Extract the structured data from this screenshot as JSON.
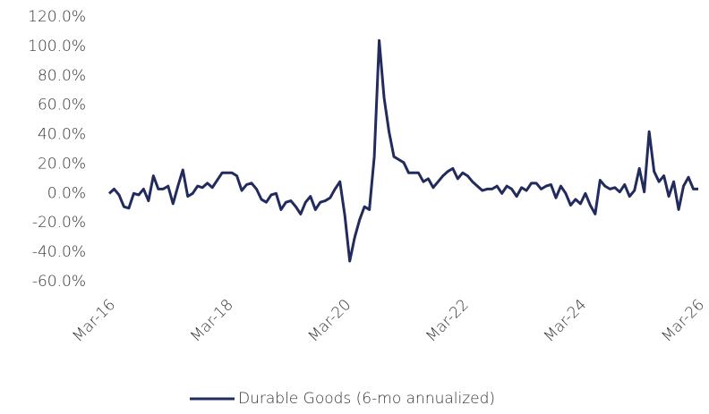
{
  "chart_data": {
    "type": "line",
    "categories": [
      "Mar-16",
      null,
      null,
      null,
      null,
      null,
      null,
      null,
      null,
      null,
      null,
      null,
      null,
      null,
      null,
      null,
      null,
      null,
      null,
      null,
      null,
      null,
      null,
      null,
      "Mar-18",
      null,
      null,
      null,
      null,
      null,
      null,
      null,
      null,
      null,
      null,
      null,
      null,
      null,
      null,
      null,
      null,
      null,
      null,
      null,
      null,
      null,
      null,
      null,
      "Mar-20",
      null,
      null,
      null,
      null,
      null,
      null,
      null,
      null,
      null,
      null,
      null,
      null,
      null,
      null,
      null,
      null,
      null,
      null,
      null,
      null,
      null,
      null,
      null,
      "Mar-22",
      null,
      null,
      null,
      null,
      null,
      null,
      null,
      null,
      null,
      null,
      null,
      null,
      null,
      null,
      null,
      null,
      null,
      null,
      null,
      null,
      null,
      null,
      null,
      "Mar-24",
      null,
      null,
      null,
      null,
      null,
      null,
      null,
      null,
      null,
      null,
      null,
      null,
      null,
      null,
      null,
      null,
      null,
      null,
      null,
      null,
      null,
      null,
      null,
      "Mar-26"
    ],
    "series": [
      {
        "name": "Durable Goods (6-mo annualized)",
        "color": "#222b5e",
        "values": [
          0,
          3,
          -1,
          -9,
          -10,
          0,
          -1,
          3,
          -5,
          12,
          3,
          3,
          5,
          -7,
          5,
          16,
          -2,
          0,
          5,
          4,
          7,
          4,
          9,
          14,
          14,
          14,
          12,
          2,
          6,
          7,
          3,
          -4,
          -6,
          -1,
          0,
          -11,
          -6,
          -5,
          -9,
          -14,
          -6,
          -2,
          -11,
          -6,
          -5,
          -3,
          3,
          8,
          -15,
          -46,
          -30,
          -18,
          -9,
          -11,
          25,
          104,
          65,
          42,
          25,
          23,
          21,
          14,
          14,
          14,
          8,
          10,
          4,
          8,
          12,
          15,
          17,
          10,
          14,
          12,
          8,
          5,
          2,
          3,
          3,
          5,
          0,
          5,
          3,
          -2,
          4,
          2,
          7,
          7,
          3,
          5,
          6,
          -3,
          5,
          0,
          -8,
          -4,
          -7,
          0,
          -8,
          -14,
          9,
          5,
          3,
          4,
          1,
          6,
          -2,
          2,
          17,
          1,
          42,
          15,
          8,
          12,
          -2,
          8,
          -11,
          5,
          11,
          3,
          3
        ]
      }
    ],
    "ylim": [
      -60,
      120
    ],
    "yticks": [
      {
        "value": -60,
        "label": "-60.0%"
      },
      {
        "value": -40,
        "label": "-40.0%"
      },
      {
        "value": -20,
        "label": "-20.0%"
      },
      {
        "value": 0,
        "label": "0.0%"
      },
      {
        "value": 20,
        "label": "20.0%"
      },
      {
        "value": 40,
        "label": "40.0%"
      },
      {
        "value": 60,
        "label": "60.0%"
      },
      {
        "value": 80,
        "label": "80.0%"
      },
      {
        "value": 100,
        "label": "100.0%"
      },
      {
        "value": 120,
        "label": "120.0%"
      }
    ],
    "grid": false,
    "legend": "bottom"
  }
}
